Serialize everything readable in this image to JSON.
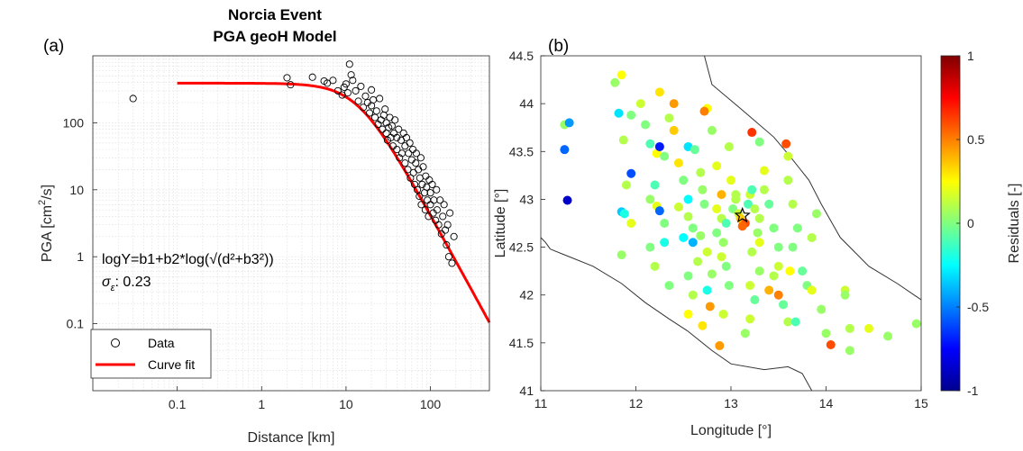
{
  "panel_a_tag": "(a)",
  "panel_b_tag": "(b)",
  "chart_data": [
    {
      "type": "scatter",
      "title": "Norcia Event",
      "subtitle": "PGA geoH Model",
      "xlabel": "Distance [km]",
      "ylabel_main": "PGA [cm",
      "ylabel_sup": "2",
      "ylabel_tail": "/s]",
      "xscale": "log",
      "yscale": "log",
      "xlim": [
        0.01,
        500
      ],
      "ylim": [
        0.01,
        1000
      ],
      "xticks": [
        0.1,
        1,
        10,
        100
      ],
      "xtick_labels": [
        "0.1",
        "1",
        "10",
        "100"
      ],
      "yticks": [
        0.1,
        1,
        10,
        100
      ],
      "ytick_labels": [
        "0.1",
        "1",
        "10",
        "100"
      ],
      "grid": true,
      "legend_position": "bottom-left",
      "annotation_equation": "logY=b1+b2*log(√(d²+b3²))",
      "annotation_sigma_label": "σ",
      "annotation_sigma_sub": "ε",
      "annotation_sigma_value": ": 0.23",
      "series": [
        {
          "name": "Data",
          "style": "open-circle",
          "points": [
            [
              0.03,
              230
            ],
            [
              2,
              470
            ],
            [
              2.2,
              370
            ],
            [
              4,
              480
            ],
            [
              5.5,
              420
            ],
            [
              6,
              390
            ],
            [
              7,
              430
            ],
            [
              8,
              300
            ],
            [
              9,
              260
            ],
            [
              9.5,
              340
            ],
            [
              10,
              380
            ],
            [
              10.5,
              280
            ],
            [
              11,
              750
            ],
            [
              11.5,
              520
            ],
            [
              12,
              430
            ],
            [
              13,
              300
            ],
            [
              14,
              210
            ],
            [
              15,
              350
            ],
            [
              16,
              170
            ],
            [
              17,
              250
            ],
            [
              18,
              200
            ],
            [
              19,
              140
            ],
            [
              20,
              310
            ],
            [
              20,
              180
            ],
            [
              21,
              220
            ],
            [
              22,
              120
            ],
            [
              23,
              150
            ],
            [
              24,
              95
            ],
            [
              25,
              230
            ],
            [
              26,
              110
            ],
            [
              27,
              80
            ],
            [
              28,
              130
            ],
            [
              29,
              160
            ],
            [
              30,
              70
            ],
            [
              30,
              100
            ],
            [
              31,
              55
            ],
            [
              32,
              85
            ],
            [
              33,
              120
            ],
            [
              34,
              60
            ],
            [
              35,
              90
            ],
            [
              36,
              45
            ],
            [
              37,
              70
            ],
            [
              38,
              110
            ],
            [
              40,
              40
            ],
            [
              40,
              60
            ],
            [
              42,
              80
            ],
            [
              43,
              30
            ],
            [
              45,
              55
            ],
            [
              46,
              35
            ],
            [
              48,
              70
            ],
            [
              50,
              25
            ],
            [
              50,
              45
            ],
            [
              52,
              60
            ],
            [
              54,
              20
            ],
            [
              55,
              35
            ],
            [
              57,
              50
            ],
            [
              58,
              15
            ],
            [
              60,
              28
            ],
            [
              62,
              40
            ],
            [
              63,
              18
            ],
            [
              65,
              12
            ],
            [
              67,
              25
            ],
            [
              68,
              35
            ],
            [
              70,
              10
            ],
            [
              72,
              20
            ],
            [
              74,
              8
            ],
            [
              75,
              15
            ],
            [
              77,
              30
            ],
            [
              78,
              6
            ],
            [
              80,
              12
            ],
            [
              82,
              22
            ],
            [
              85,
              9
            ],
            [
              87,
              5
            ],
            [
              88,
              16
            ],
            [
              90,
              11
            ],
            [
              92,
              7
            ],
            [
              95,
              4
            ],
            [
              97,
              14
            ],
            [
              100,
              9
            ],
            [
              100,
              6
            ],
            [
              105,
              12
            ],
            [
              108,
              4.5
            ],
            [
              110,
              7
            ],
            [
              115,
              3.5
            ],
            [
              118,
              10
            ],
            [
              120,
              5
            ],
            [
              125,
              3
            ],
            [
              130,
              7
            ],
            [
              135,
              2.2
            ],
            [
              140,
              4
            ],
            [
              145,
              6
            ],
            [
              150,
              2.5
            ],
            [
              155,
              1.5
            ],
            [
              160,
              3
            ],
            [
              165,
              1
            ],
            [
              170,
              4.5
            ],
            [
              180,
              0.8
            ],
            [
              190,
              2
            ]
          ]
        },
        {
          "name": "Curve fit",
          "style": "line",
          "color": "#ff0000",
          "params": {
            "b1_pga_plateau": 390,
            "b2_slope": -2.3,
            "b3_km": 14
          },
          "x_range": [
            0.1,
            500
          ]
        }
      ]
    },
    {
      "type": "scatter",
      "subtype": "map",
      "xlabel": "Longitude [°]",
      "ylabel": "Latitude [°]",
      "xlim": [
        11,
        15
      ],
      "ylim": [
        41,
        44.5
      ],
      "xticks": [
        11,
        12,
        13,
        14,
        15
      ],
      "xtick_labels": [
        "11",
        "12",
        "13",
        "14",
        "15"
      ],
      "yticks": [
        41,
        41.5,
        42,
        42.5,
        43,
        43.5,
        44,
        44.5
      ],
      "ytick_labels": [
        "41",
        "41.5",
        "42",
        "42.5",
        "43",
        "43.5",
        "44",
        "44.5"
      ],
      "colorbar_label": "Residuals [-]",
      "colorbar_range": [
        -1,
        1
      ],
      "colorbar_ticks": [
        -1,
        -0.5,
        0,
        0.5,
        1
      ],
      "colorbar_tick_labels": [
        "-1",
        "-0.5",
        "0",
        "0.5",
        "1"
      ],
      "colormap": "jet",
      "epicenter": [
        13.12,
        42.83
      ],
      "coastline": [
        [
          [
            12.72,
            44.5
          ],
          [
            12.8,
            44.2
          ],
          [
            13.1,
            43.95
          ],
          [
            13.45,
            43.65
          ],
          [
            13.62,
            43.45
          ],
          [
            13.82,
            43.2
          ],
          [
            13.95,
            42.95
          ],
          [
            14.15,
            42.6
          ],
          [
            14.45,
            42.3
          ],
          [
            14.75,
            42.12
          ],
          [
            15.0,
            41.95
          ]
        ],
        [
          [
            11.1,
            42.48
          ],
          [
            11.25,
            42.42
          ],
          [
            11.55,
            42.3
          ],
          [
            11.85,
            42.12
          ],
          [
            12.1,
            41.92
          ],
          [
            12.35,
            41.75
          ],
          [
            12.55,
            41.62
          ],
          [
            12.8,
            41.42
          ],
          [
            13.0,
            41.28
          ],
          [
            13.35,
            41.22
          ],
          [
            13.6,
            41.25
          ],
          [
            13.75,
            41.18
          ],
          [
            13.85,
            41.0
          ]
        ],
        [
          [
            11.0,
            42.6
          ],
          [
            11.05,
            42.55
          ],
          [
            11.1,
            42.48
          ]
        ]
      ],
      "stations": [
        [
          11.25,
          43.78,
          0.05
        ],
        [
          11.3,
          43.8,
          -0.45
        ],
        [
          11.25,
          43.52,
          -0.55
        ],
        [
          11.28,
          42.99,
          -0.85
        ],
        [
          11.78,
          44.22,
          0.05
        ],
        [
          11.85,
          44.3,
          0.25
        ],
        [
          11.82,
          43.9,
          -0.3
        ],
        [
          11.95,
          43.88,
          0.0
        ],
        [
          11.87,
          43.62,
          0.1
        ],
        [
          11.95,
          43.27,
          -0.6
        ],
        [
          11.9,
          43.15,
          0.1
        ],
        [
          11.85,
          42.87,
          -0.35
        ],
        [
          11.88,
          42.85,
          -0.2
        ],
        [
          11.95,
          42.75,
          0.2
        ],
        [
          11.85,
          42.42,
          0.05
        ],
        [
          12.05,
          44.0,
          0.15
        ],
        [
          12.25,
          44.12,
          0.3
        ],
        [
          12.1,
          43.78,
          0.0
        ],
        [
          12.15,
          43.58,
          -0.1
        ],
        [
          12.22,
          43.48,
          0.25
        ],
        [
          12.25,
          43.55,
          -0.7
        ],
        [
          12.3,
          43.45,
          0.0
        ],
        [
          12.2,
          43.15,
          -0.1
        ],
        [
          12.15,
          43.0,
          0.05
        ],
        [
          12.22,
          42.93,
          0.2
        ],
        [
          12.25,
          42.88,
          -0.55
        ],
        [
          12.3,
          42.75,
          0.0
        ],
        [
          12.15,
          42.5,
          0.0
        ],
        [
          12.3,
          42.55,
          -0.2
        ],
        [
          12.2,
          42.3,
          0.1
        ],
        [
          12.35,
          42.1,
          0.0
        ],
        [
          12.35,
          43.85,
          0.1
        ],
        [
          12.4,
          44.0,
          0.45
        ],
        [
          12.4,
          43.72,
          0.35
        ],
        [
          12.45,
          43.38,
          0.3
        ],
        [
          12.55,
          43.55,
          -0.3
        ],
        [
          12.5,
          43.2,
          0.0
        ],
        [
          12.55,
          43.0,
          -0.25
        ],
        [
          12.45,
          42.92,
          0.15
        ],
        [
          12.55,
          42.82,
          0.1
        ],
        [
          12.6,
          42.7,
          0.0
        ],
        [
          12.5,
          42.6,
          -0.25
        ],
        [
          12.6,
          42.55,
          -0.4
        ],
        [
          12.65,
          42.35,
          0.1
        ],
        [
          12.55,
          42.2,
          0.0
        ],
        [
          12.6,
          42.0,
          0.1
        ],
        [
          12.55,
          41.8,
          0.25
        ],
        [
          12.7,
          41.68,
          0.3
        ],
        [
          12.62,
          43.52,
          -0.05
        ],
        [
          12.68,
          43.28,
          0.1
        ],
        [
          12.7,
          43.1,
          0.05
        ],
        [
          12.72,
          42.95,
          0.0
        ],
        [
          12.68,
          42.62,
          0.05
        ],
        [
          12.75,
          42.45,
          0.15
        ],
        [
          12.8,
          42.22,
          0.05
        ],
        [
          12.75,
          42.05,
          -0.2
        ],
        [
          12.78,
          41.88,
          0.45
        ],
        [
          12.75,
          43.95,
          0.25
        ],
        [
          12.72,
          43.92,
          0.5
        ],
        [
          12.8,
          43.72,
          0.05
        ],
        [
          12.85,
          43.35,
          0.2
        ],
        [
          12.9,
          43.05,
          0.4
        ],
        [
          12.85,
          42.9,
          0.2
        ],
        [
          12.9,
          42.8,
          0.1
        ],
        [
          12.95,
          42.75,
          -0.1
        ],
        [
          12.85,
          42.65,
          0.0
        ],
        [
          12.92,
          42.55,
          0.05
        ],
        [
          12.9,
          42.4,
          0.15
        ],
        [
          12.95,
          42.3,
          0.0
        ],
        [
          12.98,
          42.1,
          0.0
        ],
        [
          12.92,
          41.8,
          0.15
        ],
        [
          12.88,
          41.47,
          0.45
        ],
        [
          12.98,
          43.55,
          0.1
        ],
        [
          13.0,
          43.2,
          0.2
        ],
        [
          13.05,
          43.05,
          0.1
        ],
        [
          13.05,
          43.0,
          0.1
        ],
        [
          13.02,
          42.9,
          0.0
        ],
        [
          13.08,
          42.85,
          0.15
        ],
        [
          13.1,
          42.8,
          0.35
        ],
        [
          13.15,
          42.75,
          0.6
        ],
        [
          13.12,
          42.72,
          0.55
        ],
        [
          13.18,
          42.95,
          -0.1
        ],
        [
          13.2,
          43.05,
          0.15
        ],
        [
          13.22,
          43.1,
          -0.1
        ],
        [
          13.25,
          42.9,
          0.1
        ],
        [
          13.3,
          42.8,
          0.1
        ],
        [
          13.28,
          42.65,
          0.05
        ],
        [
          13.3,
          42.55,
          0.2
        ],
        [
          13.22,
          42.45,
          0.1
        ],
        [
          13.3,
          42.25,
          0.05
        ],
        [
          13.2,
          42.1,
          0.15
        ],
        [
          13.25,
          41.95,
          -0.05
        ],
        [
          13.2,
          41.75,
          0.15
        ],
        [
          13.15,
          41.6,
          0.05
        ],
        [
          13.22,
          43.7,
          0.65
        ],
        [
          13.3,
          43.6,
          0.0
        ],
        [
          13.35,
          43.3,
          0.2
        ],
        [
          13.35,
          43.1,
          0.1
        ],
        [
          13.4,
          42.95,
          -0.05
        ],
        [
          13.45,
          42.7,
          0.0
        ],
        [
          13.5,
          42.5,
          0.0
        ],
        [
          13.5,
          42.3,
          0.15
        ],
        [
          13.45,
          42.2,
          0.1
        ],
        [
          13.4,
          42.05,
          0.4
        ],
        [
          13.5,
          42.0,
          0.5
        ],
        [
          13.58,
          43.58,
          0.6
        ],
        [
          13.6,
          43.45,
          0.15
        ],
        [
          13.6,
          43.2,
          0.1
        ],
        [
          13.65,
          42.95,
          0.1
        ],
        [
          13.7,
          42.7,
          0.0
        ],
        [
          13.65,
          42.5,
          0.0
        ],
        [
          13.62,
          42.25,
          0.25
        ],
        [
          13.55,
          41.9,
          -0.05
        ],
        [
          13.6,
          41.72,
          0.1
        ],
        [
          13.68,
          41.72,
          -0.1
        ],
        [
          13.75,
          42.25,
          -0.05
        ],
        [
          13.8,
          42.1,
          0.0
        ],
        [
          13.85,
          42.05,
          0.2
        ],
        [
          13.9,
          42.85,
          0.05
        ],
        [
          13.85,
          42.6,
          0.1
        ],
        [
          13.95,
          41.85,
          0.05
        ],
        [
          14.0,
          41.6,
          0.05
        ],
        [
          14.05,
          41.48,
          0.6
        ],
        [
          14.2,
          42.05,
          0.15
        ],
        [
          14.2,
          42.0,
          0.05
        ],
        [
          14.25,
          41.65,
          0.1
        ],
        [
          14.25,
          41.42,
          0.05
        ],
        [
          14.45,
          41.65,
          0.2
        ],
        [
          14.65,
          41.57,
          0.05
        ],
        [
          14.95,
          41.7,
          0.05
        ]
      ]
    }
  ]
}
